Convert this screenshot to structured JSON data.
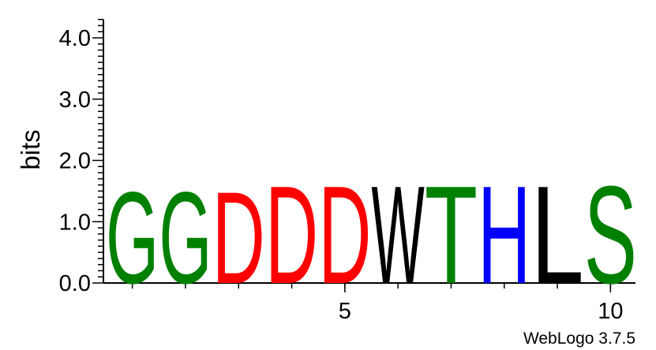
{
  "chart_data": {
    "type": "sequence-logo",
    "ylabel": "bits",
    "ylim": [
      0,
      4.3
    ],
    "yticks": [
      {
        "value": 0.0,
        "label": "0.0"
      },
      {
        "value": 1.0,
        "label": "1.0"
      },
      {
        "value": 2.0,
        "label": "2.0"
      },
      {
        "value": 3.0,
        "label": "3.0"
      },
      {
        "value": 4.0,
        "label": "4.0"
      }
    ],
    "xticks": [
      {
        "value": 5,
        "label": "5"
      },
      {
        "value": 10,
        "label": "10"
      }
    ],
    "positions": [
      {
        "position": 1,
        "letter": "G",
        "bits": 1.55,
        "color": "#008000"
      },
      {
        "position": 2,
        "letter": "G",
        "bits": 1.55,
        "color": "#008000"
      },
      {
        "position": 3,
        "letter": "D",
        "bits": 1.55,
        "color": "#ff0000"
      },
      {
        "position": 4,
        "letter": "D",
        "bits": 1.65,
        "color": "#ff0000"
      },
      {
        "position": 5,
        "letter": "D",
        "bits": 1.65,
        "color": "#ff0000"
      },
      {
        "position": 6,
        "letter": "W",
        "bits": 1.65,
        "color": "#000000"
      },
      {
        "position": 7,
        "letter": "T",
        "bits": 1.65,
        "color": "#008000"
      },
      {
        "position": 8,
        "letter": "H",
        "bits": 1.65,
        "color": "#0000ff"
      },
      {
        "position": 9,
        "letter": "L",
        "bits": 1.65,
        "color": "#000000"
      },
      {
        "position": 10,
        "letter": "S",
        "bits": 1.65,
        "color": "#008000"
      }
    ]
  },
  "credit": "WebLogo 3.7.5"
}
